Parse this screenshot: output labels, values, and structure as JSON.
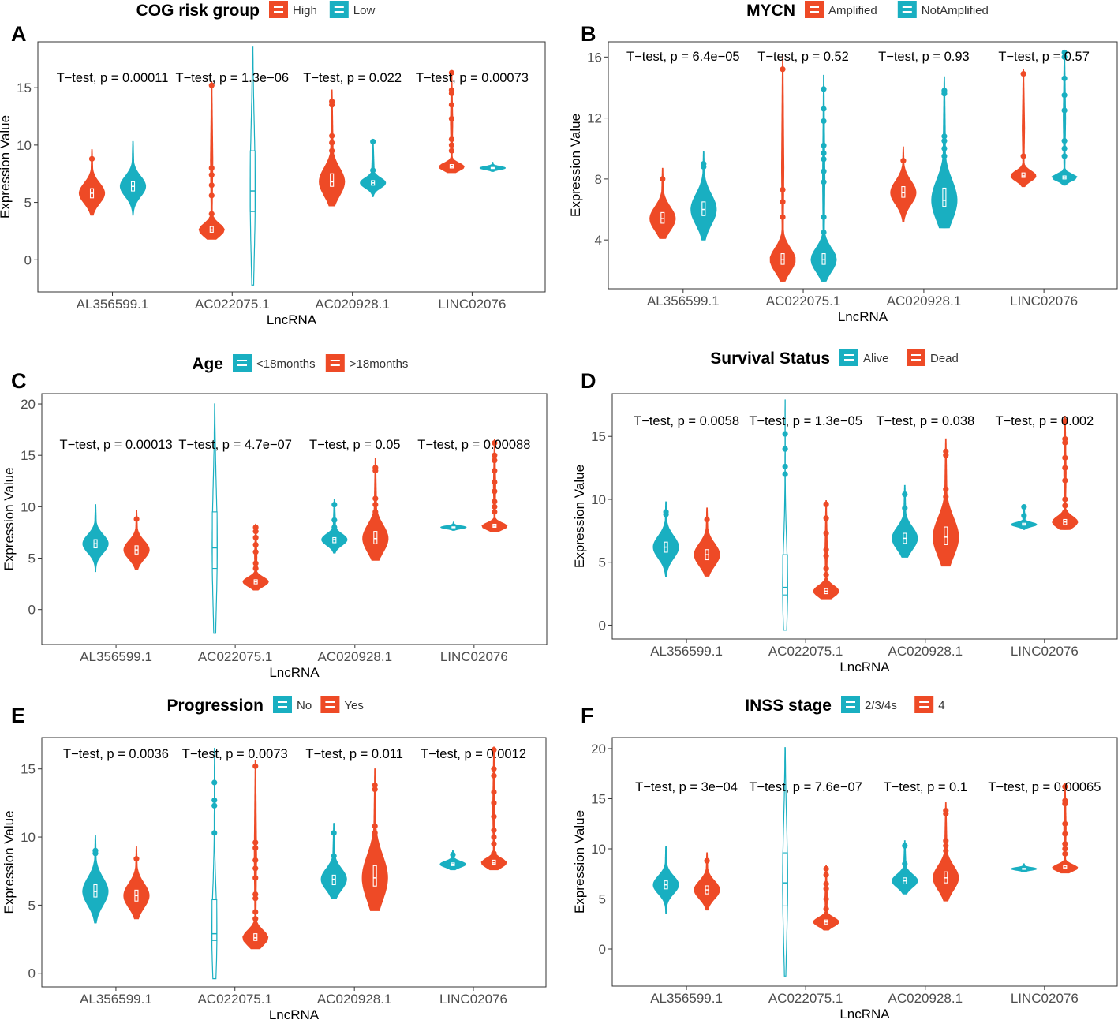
{
  "chart_data": [
    {
      "panel": "A",
      "type": "violin",
      "legend_title": "COG risk group",
      "groups": [
        {
          "name": "High",
          "color": "#EE4A26"
        },
        {
          "name": "Low",
          "color": "#19AFC1"
        }
      ],
      "xlabel": "LncRNA",
      "ylabel": "Expression Value",
      "ylim": [
        -2.8,
        19
      ],
      "yticks": [
        0,
        5,
        10,
        15
      ],
      "categories": [
        "AL356599.1",
        "AC022075.1",
        "AC020928.1",
        "LINC02076"
      ],
      "annotations": [
        "T−test, p = 0.00011",
        "T−test, p = 1.3e−06",
        "T−test, p = 0.022",
        "T−test, p = 0.00073"
      ],
      "series": [
        {
          "name": "High",
          "violins": [
            {
              "min": 3.9,
              "max": 9.6,
              "median": 5.8,
              "q1": 5.4,
              "q3": 6.2,
              "outliers": [
                8.8
              ]
            },
            {
              "min": 1.8,
              "max": 15.5,
              "median": 2.6,
              "q1": 2.4,
              "q3": 2.9,
              "outliers": [
                3.6,
                4.0,
                5.6,
                6.5,
                7.4,
                8.0,
                15.2
              ]
            },
            {
              "min": 4.7,
              "max": 14.8,
              "median": 6.8,
              "q1": 6.4,
              "q3": 7.5,
              "outliers": [
                9.5,
                10.2,
                10.8,
                13.5,
                13.8
              ]
            },
            {
              "min": 7.6,
              "max": 16.3,
              "median": 8.1,
              "q1": 8.0,
              "q3": 8.3,
              "outliers": [
                9.5,
                10.0,
                10.5,
                12.3,
                13.5,
                14.5,
                14.8,
                16.3
              ]
            }
          ]
        },
        {
          "name": "Low",
          "violins": [
            {
              "min": 3.9,
              "max": 10.3,
              "median": 6.4,
              "q1": 6.0,
              "q3": 6.8,
              "outliers": []
            },
            {
              "min": -2.2,
              "max": 18.6,
              "median": 6.0,
              "q1": 4.2,
              "q3": 9.5,
              "outliers": []
            },
            {
              "min": 5.5,
              "max": 10.5,
              "median": 6.7,
              "q1": 6.5,
              "q3": 6.9,
              "outliers": [
                7.8,
                10.3
              ]
            },
            {
              "min": 7.7,
              "max": 8.5,
              "median": 8.0,
              "q1": 7.95,
              "q3": 8.05,
              "outliers": []
            }
          ]
        }
      ]
    },
    {
      "panel": "B",
      "type": "violin",
      "legend_title": "MYCN",
      "groups": [
        {
          "name": "Amplified",
          "color": "#EE4A26"
        },
        {
          "name": "NotAmplified",
          "color": "#19AFC1"
        }
      ],
      "xlabel": "LncRNA",
      "ylabel": "Expression Value",
      "ylim": [
        0.8,
        17
      ],
      "yticks": [
        4,
        8,
        12,
        16
      ],
      "categories": [
        "AL356599.1",
        "AC022075.1",
        "AC020928.1",
        "LINC02076"
      ],
      "annotations": [
        "T−test, p = 6.4e−05",
        "T−test, p = 0.52",
        "T−test, p = 0.93",
        "T−test, p = 0.57"
      ],
      "series": [
        {
          "name": "Amplified",
          "violins": [
            {
              "min": 4.1,
              "max": 8.7,
              "median": 5.4,
              "q1": 5.1,
              "q3": 5.8,
              "outliers": [
                8.0
              ]
            },
            {
              "min": 1.3,
              "max": 16.2,
              "median": 2.7,
              "q1": 2.4,
              "q3": 3.1,
              "outliers": [
                5.5,
                6.5,
                7.3,
                15.2
              ]
            },
            {
              "min": 5.2,
              "max": 10.1,
              "median": 7.1,
              "q1": 6.8,
              "q3": 7.5,
              "outliers": [
                9.2
              ]
            },
            {
              "min": 7.5,
              "max": 15.2,
              "median": 8.2,
              "q1": 8.1,
              "q3": 8.4,
              "outliers": [
                9.5,
                14.9
              ]
            }
          ]
        },
        {
          "name": "NotAmplified",
          "violins": [
            {
              "min": 4.0,
              "max": 9.8,
              "median": 6.0,
              "q1": 5.6,
              "q3": 6.5,
              "outliers": [
                8.8,
                9.0
              ]
            },
            {
              "min": 1.3,
              "max": 14.8,
              "median": 2.7,
              "q1": 2.4,
              "q3": 3.1,
              "outliers": [
                4.5,
                5.5,
                7.8,
                8.5,
                9.3,
                9.7,
                10.2,
                11.8,
                12.6,
                13.9
              ]
            },
            {
              "min": 4.8,
              "max": 14.7,
              "median": 6.6,
              "q1": 6.2,
              "q3": 7.4,
              "outliers": [
                9.5,
                10.0,
                10.5,
                10.8,
                13.6,
                13.8
              ]
            },
            {
              "min": 7.6,
              "max": 16.4,
              "median": 8.1,
              "q1": 8.0,
              "q3": 8.2,
              "outliers": [
                9.5,
                10.0,
                10.5,
                12.5,
                13.5,
                14.6,
                16.0,
                16.3
              ]
            }
          ]
        }
      ]
    },
    {
      "panel": "C",
      "type": "violin",
      "legend_title": "Age",
      "groups": [
        {
          "name": "<18months",
          "color": "#19AFC1"
        },
        {
          "name": ">18months",
          "color": "#EE4A26"
        }
      ],
      "xlabel": "LncRNA",
      "ylabel": "Expression Value",
      "ylim": [
        -3.4,
        21
      ],
      "yticks": [
        0,
        5,
        10,
        15,
        20
      ],
      "categories": [
        "AL356599.1",
        "AC022075.1",
        "AC020928.1",
        "LINC02076"
      ],
      "annotations": [
        "T−test, p = 0.00013",
        "T−test, p = 4.7e−07",
        "T−test, p = 0.05",
        "T−test, p = 0.00088"
      ],
      "series": [
        {
          "name": "<18months",
          "violins": [
            {
              "min": 3.7,
              "max": 10.2,
              "median": 6.4,
              "q1": 6.0,
              "q3": 6.8,
              "outliers": []
            },
            {
              "min": -2.3,
              "max": 20.0,
              "median": 6.0,
              "q1": 4.0,
              "q3": 9.5,
              "outliers": []
            },
            {
              "min": 5.5,
              "max": 10.7,
              "median": 6.8,
              "q1": 6.5,
              "q3": 7.0,
              "outliers": [
                8.0,
                8.7,
                10.2
              ]
            },
            {
              "min": 7.7,
              "max": 8.5,
              "median": 8.0,
              "q1": 7.95,
              "q3": 8.05,
              "outliers": []
            }
          ]
        },
        {
          "name": ">18months",
          "violins": [
            {
              "min": 3.9,
              "max": 9.6,
              "median": 5.8,
              "q1": 5.4,
              "q3": 6.2,
              "outliers": [
                8.8
              ]
            },
            {
              "min": 1.9,
              "max": 8.3,
              "median": 2.7,
              "q1": 2.5,
              "q3": 2.9,
              "outliers": [
                3.4,
                4.0,
                4.5,
                5.6,
                6.3,
                7.0,
                7.6,
                8.0
              ]
            },
            {
              "min": 4.8,
              "max": 14.7,
              "median": 6.9,
              "q1": 6.4,
              "q3": 7.6,
              "outliers": [
                9.5,
                10.2,
                10.8,
                13.5,
                13.8
              ]
            },
            {
              "min": 7.6,
              "max": 16.5,
              "median": 8.1,
              "q1": 8.0,
              "q3": 8.3,
              "outliers": [
                9.5,
                10.0,
                10.5,
                11.5,
                12.4,
                13.5,
                14.5,
                15.0,
                16.2
              ]
            }
          ]
        }
      ]
    },
    {
      "panel": "D",
      "type": "violin",
      "legend_title": "Survival Status",
      "groups": [
        {
          "name": "Alive",
          "color": "#19AFC1"
        },
        {
          "name": "Dead",
          "color": "#EE4A26"
        }
      ],
      "xlabel": "LncRNA",
      "ylabel": "Expression Value",
      "ylim": [
        -1.1,
        18.4
      ],
      "yticks": [
        0,
        5,
        10,
        15
      ],
      "categories": [
        "AL356599.1",
        "AC022075.1",
        "AC020928.1",
        "LINC02076"
      ],
      "annotations": [
        "T−test, p = 0.0058",
        "T−test, p = 1.3e−05",
        "T−test, p = 0.038",
        "T−test, p = 0.002"
      ],
      "series": [
        {
          "name": "Alive",
          "violins": [
            {
              "min": 3.9,
              "max": 9.8,
              "median": 6.2,
              "q1": 5.8,
              "q3": 6.6,
              "outliers": [
                8.8,
                9.0
              ]
            },
            {
              "min": -0.4,
              "max": 17.9,
              "median": 3.0,
              "q1": 2.4,
              "q3": 5.6,
              "outliers": [
                12.0,
                12.6,
                14.0,
                15.2
              ]
            },
            {
              "min": 5.4,
              "max": 11.1,
              "median": 6.9,
              "q1": 6.5,
              "q3": 7.3,
              "outliers": [
                9.3,
                10.4
              ]
            },
            {
              "min": 7.6,
              "max": 9.4,
              "median": 8.0,
              "q1": 7.95,
              "q3": 8.1,
              "outliers": [
                8.7,
                9.4
              ]
            }
          ]
        },
        {
          "name": "Dead",
          "violins": [
            {
              "min": 3.9,
              "max": 9.3,
              "median": 5.6,
              "q1": 5.2,
              "q3": 6.0,
              "outliers": [
                8.4
              ]
            },
            {
              "min": 2.1,
              "max": 9.9,
              "median": 2.7,
              "q1": 2.5,
              "q3": 2.9,
              "outliers": [
                3.3,
                4.0,
                4.5,
                5.5,
                6.0,
                7.3,
                8.5,
                9.6
              ]
            },
            {
              "min": 4.7,
              "max": 14.8,
              "median": 7.0,
              "q1": 6.4,
              "q3": 7.8,
              "outliers": [
                9.7,
                10.2,
                10.8,
                13.5,
                13.8
              ]
            },
            {
              "min": 7.6,
              "max": 16.6,
              "median": 8.2,
              "q1": 8.0,
              "q3": 8.4,
              "outliers": [
                9.0,
                9.5,
                10.0,
                11.5,
                12.5,
                13.3,
                14.5,
                14.8,
                16.2
              ]
            }
          ]
        }
      ]
    },
    {
      "panel": "E",
      "type": "violin",
      "legend_title": "Progression",
      "groups": [
        {
          "name": "No",
          "color": "#19AFC1"
        },
        {
          "name": "Yes",
          "color": "#EE4A26"
        }
      ],
      "xlabel": "LncRNA",
      "ylabel": "Expression Value",
      "ylim": [
        -1.0,
        17.3
      ],
      "yticks": [
        0,
        5,
        10,
        15
      ],
      "categories": [
        "AL356599.1",
        "AC022075.1",
        "AC020928.1",
        "LINC02076"
      ],
      "annotations": [
        "T−test, p = 0.0036",
        "T−test, p = 0.0073",
        "T−test, p = 0.011",
        "T−test, p = 0.0012"
      ],
      "series": [
        {
          "name": "No",
          "violins": [
            {
              "min": 3.7,
              "max": 10.1,
              "median": 6.0,
              "q1": 5.6,
              "q3": 6.5,
              "outliers": [
                8.8,
                9.0
              ]
            },
            {
              "min": -0.4,
              "max": 16.5,
              "median": 2.9,
              "q1": 2.4,
              "q3": 5.4,
              "outliers": [
                10.3,
                12.3,
                12.7,
                14.0
              ]
            },
            {
              "min": 5.5,
              "max": 11.0,
              "median": 6.9,
              "q1": 6.5,
              "q3": 7.2,
              "outliers": [
                8.6,
                10.3
              ]
            },
            {
              "min": 7.6,
              "max": 9.0,
              "median": 8.0,
              "q1": 7.9,
              "q3": 8.1,
              "outliers": [
                8.7
              ]
            }
          ]
        },
        {
          "name": "Yes",
          "violins": [
            {
              "min": 4.0,
              "max": 9.3,
              "median": 5.7,
              "q1": 5.3,
              "q3": 6.1,
              "outliers": [
                8.4
              ]
            },
            {
              "min": 1.8,
              "max": 15.6,
              "median": 2.6,
              "q1": 2.4,
              "q3": 2.9,
              "outliers": [
                3.4,
                4.0,
                4.5,
                5.5,
                5.8,
                7.0,
                7.7,
                8.3,
                9.2,
                9.6,
                15.2
              ]
            },
            {
              "min": 4.6,
              "max": 15.0,
              "median": 7.0,
              "q1": 6.4,
              "q3": 7.9,
              "outliers": [
                9.8,
                10.3,
                10.8,
                13.5,
                13.8
              ]
            },
            {
              "min": 7.6,
              "max": 16.6,
              "median": 8.1,
              "q1": 8.0,
              "q3": 8.3,
              "outliers": [
                8.8,
                9.5,
                10.0,
                10.5,
                11.5,
                12.5,
                13.3,
                14.5,
                15.0,
                16.4
              ]
            }
          ]
        }
      ]
    },
    {
      "panel": "F",
      "type": "violin",
      "legend_title": "INSS stage",
      "groups": [
        {
          "name": "2/3/4s",
          "color": "#19AFC1"
        },
        {
          "name": "4",
          "color": "#EE4A26"
        }
      ],
      "xlabel": "LncRNA",
      "ylabel": "Expression Value",
      "ylim": [
        -3.7,
        21.1
      ],
      "yticks": [
        0,
        5,
        10,
        15,
        20
      ],
      "categories": [
        "AL356599.1",
        "AC022075.1",
        "AC020928.1",
        "LINC02076"
      ],
      "annotations": [
        "T−test, p = 3e−04",
        "T−test, p = 7.6e−07",
        "T−test, p = 0.1",
        "T−test, p = 0.00065"
      ],
      "series": [
        {
          "name": "2/3/4s",
          "violins": [
            {
              "min": 3.6,
              "max": 10.2,
              "median": 6.4,
              "q1": 6.0,
              "q3": 6.8,
              "outliers": []
            },
            {
              "min": -2.7,
              "max": 20.1,
              "median": 6.6,
              "q1": 4.3,
              "q3": 9.6,
              "outliers": []
            },
            {
              "min": 5.5,
              "max": 10.8,
              "median": 6.8,
              "q1": 6.5,
              "q3": 7.1,
              "outliers": [
                7.8,
                8.5,
                10.3
              ]
            },
            {
              "min": 7.7,
              "max": 8.5,
              "median": 8.0,
              "q1": 7.95,
              "q3": 8.05,
              "outliers": []
            }
          ]
        },
        {
          "name": "4",
          "violins": [
            {
              "min": 3.9,
              "max": 9.6,
              "median": 5.9,
              "q1": 5.5,
              "q3": 6.3,
              "outliers": [
                8.8
              ]
            },
            {
              "min": 1.9,
              "max": 8.3,
              "median": 2.7,
              "q1": 2.5,
              "q3": 2.9,
              "outliers": [
                3.4,
                4.0,
                5.0,
                6.0,
                6.5,
                7.4,
                8.0
              ]
            },
            {
              "min": 4.8,
              "max": 14.6,
              "median": 7.1,
              "q1": 6.6,
              "q3": 7.7,
              "outliers": [
                9.8,
                10.3,
                10.8,
                13.5,
                13.8
              ]
            },
            {
              "min": 7.6,
              "max": 16.5,
              "median": 8.1,
              "q1": 8.0,
              "q3": 8.3,
              "outliers": [
                9.5,
                10.0,
                10.5,
                11.5,
                12.5,
                14.5,
                14.8,
                16.2
              ]
            }
          ]
        }
      ]
    }
  ]
}
